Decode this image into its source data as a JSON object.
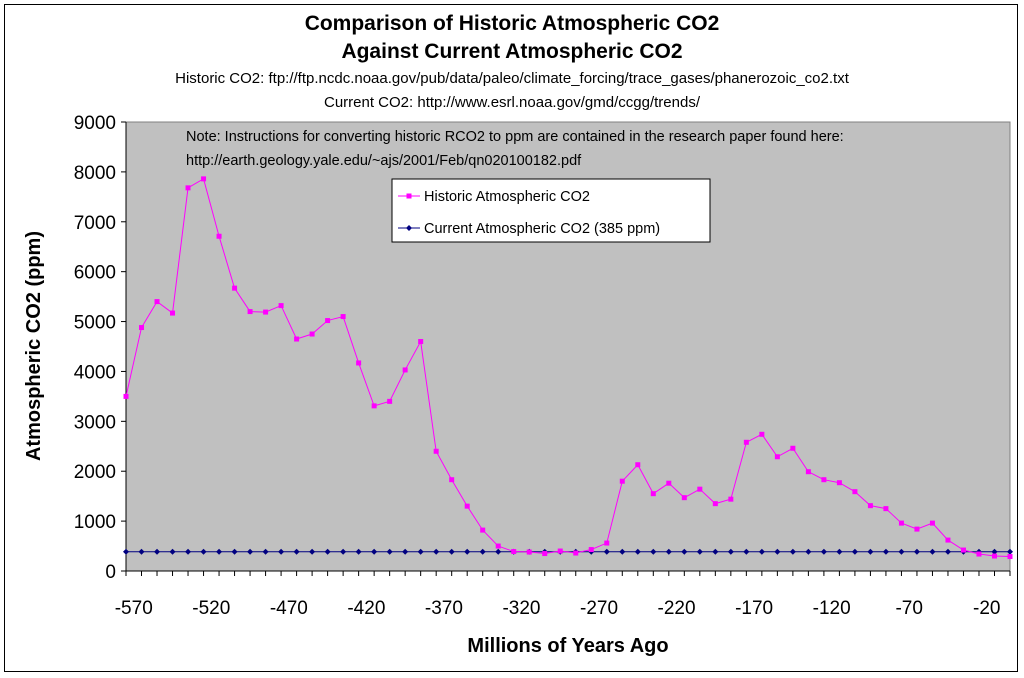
{
  "chart_data": {
    "type": "line",
    "title_line1": "Comparison of Historic Atmospheric CO2",
    "title_line2": "Against Current Atmospheric CO2",
    "source_historic": "Historic CO2: ftp://ftp.ncdc.noaa.gov/pub/data/paleo/climate_forcing/trace_gases/phanerozoic_co2.txt",
    "source_current": "Current CO2: http://www.esrl.noaa.gov/gmd/ccgg/trends/",
    "note_line1": "Note: Instructions for converting historic RCO2 to ppm are contained in the research paper found here:",
    "note_line2": "http://earth.geology.yale.edu/~ajs/2001/Feb/qn020100182.pdf",
    "xlabel": "Millions of Years Ago",
    "ylabel": "Atmospheric CO2 (ppm)",
    "xlim": [
      -575,
      -5
    ],
    "ylim": [
      0,
      9000
    ],
    "y_ticks": [
      0,
      1000,
      2000,
      3000,
      4000,
      5000,
      6000,
      7000,
      8000,
      9000
    ],
    "x_tick_labels": [
      -570,
      -520,
      -470,
      -420,
      -370,
      -320,
      -270,
      -220,
      -170,
      -120,
      -70,
      -20
    ],
    "grid": false,
    "legend_position": "top-center",
    "plot_background": "#c0c0c0",
    "x": [
      -575,
      -565,
      -555,
      -545,
      -535,
      -525,
      -515,
      -505,
      -495,
      -485,
      -475,
      -465,
      -455,
      -445,
      -435,
      -425,
      -415,
      -405,
      -395,
      -385,
      -375,
      -365,
      -355,
      -345,
      -335,
      -325,
      -315,
      -305,
      -295,
      -285,
      -275,
      -265,
      -255,
      -245,
      -235,
      -225,
      -215,
      -205,
      -195,
      -185,
      -175,
      -165,
      -155,
      -145,
      -135,
      -125,
      -115,
      -105,
      -95,
      -85,
      -75,
      -65,
      -55,
      -45,
      -35,
      -25,
      -15,
      -5
    ],
    "series": [
      {
        "name": "Historic Atmospheric CO2",
        "color": "#ff00ff",
        "marker": "square",
        "values": [
          3500,
          4880,
          5400,
          5170,
          7680,
          7860,
          6710,
          5670,
          5200,
          5190,
          5320,
          4650,
          4750,
          5020,
          5100,
          4170,
          3310,
          3400,
          4030,
          4600,
          2400,
          1830,
          1300,
          820,
          500,
          390,
          380,
          350,
          400,
          360,
          430,
          560,
          1800,
          2130,
          1550,
          1760,
          1470,
          1640,
          1350,
          1440,
          2580,
          2740,
          2290,
          2460,
          1990,
          1830,
          1770,
          1590,
          1310,
          1250,
          960,
          840,
          960,
          620,
          420,
          340,
          300,
          290
        ]
      },
      {
        "name": "Current Atmospheric CO2 (385 ppm)",
        "color": "#000080",
        "marker": "diamond",
        "constant": 385
      }
    ]
  }
}
